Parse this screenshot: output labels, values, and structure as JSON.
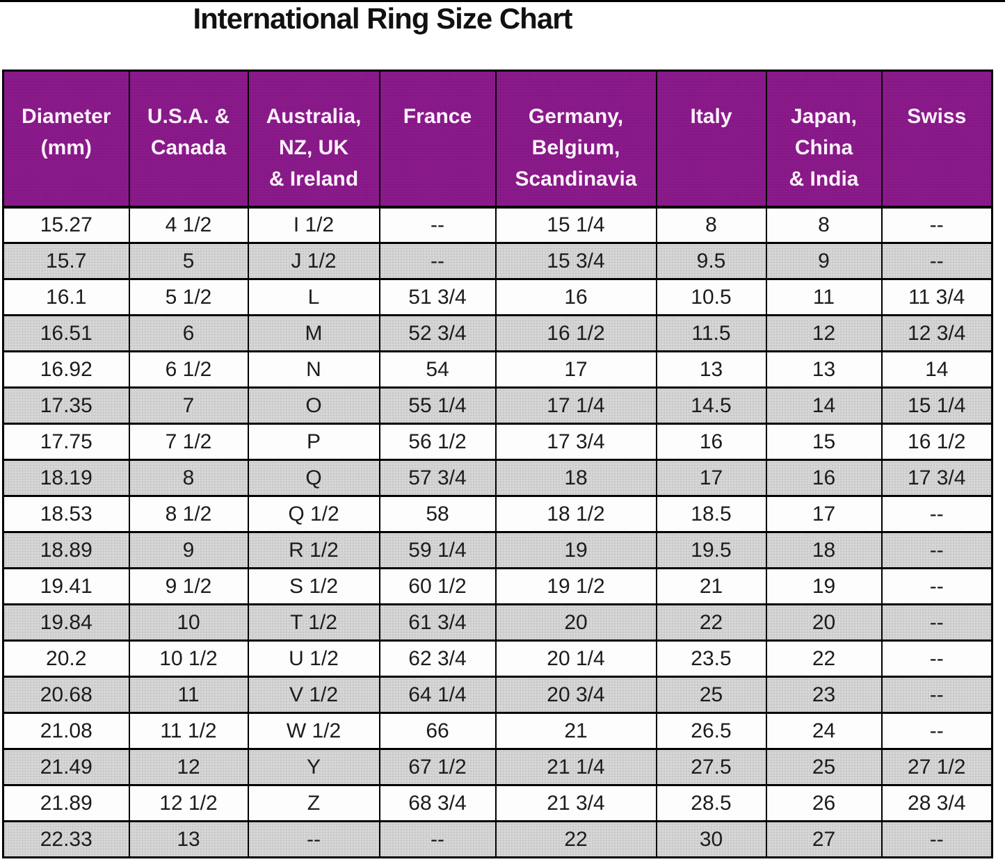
{
  "title": "International Ring Size Chart",
  "chart_data": {
    "type": "table",
    "title": "International Ring Size Chart",
    "columns": [
      {
        "id": "diameter-mm",
        "label": "Diameter\n(mm)"
      },
      {
        "id": "usa-canada",
        "label": "U.S.A. &\nCanada"
      },
      {
        "id": "australia-nz-uk-ireland",
        "label": "Australia,\nNZ, UK\n& Ireland"
      },
      {
        "id": "france",
        "label": "France"
      },
      {
        "id": "germany-belgium-scandinavia",
        "label": "Germany,\nBelgium,\nScandinavia"
      },
      {
        "id": "italy",
        "label": "Italy"
      },
      {
        "id": "japan-china-india",
        "label": "Japan,\nChina\n& India"
      },
      {
        "id": "swiss",
        "label": "Swiss"
      }
    ],
    "rows": [
      [
        "15.27",
        "4 1/2",
        "I 1/2",
        "--",
        "15 1/4",
        "8",
        "8",
        "--"
      ],
      [
        "15.7",
        "5",
        "J 1/2",
        "--",
        "15 3/4",
        "9.5",
        "9",
        "--"
      ],
      [
        "16.1",
        "5 1/2",
        "L",
        "51 3/4",
        "16",
        "10.5",
        "11",
        "11 3/4"
      ],
      [
        "16.51",
        "6",
        "M",
        "52 3/4",
        "16 1/2",
        "11.5",
        "12",
        "12 3/4"
      ],
      [
        "16.92",
        "6 1/2",
        "N",
        "54",
        "17",
        "13",
        "13",
        "14"
      ],
      [
        "17.35",
        "7",
        "O",
        "55 1/4",
        "17 1/4",
        "14.5",
        "14",
        "15 1/4"
      ],
      [
        "17.75",
        "7 1/2",
        "P",
        "56 1/2",
        "17 3/4",
        "16",
        "15",
        "16 1/2"
      ],
      [
        "18.19",
        "8",
        "Q",
        "57 3/4",
        "18",
        "17",
        "16",
        "17 3/4"
      ],
      [
        "18.53",
        "8 1/2",
        "Q 1/2",
        "58",
        "18 1/2",
        "18.5",
        "17",
        "--"
      ],
      [
        "18.89",
        "9",
        "R 1/2",
        "59 1/4",
        "19",
        "19.5",
        "18",
        "--"
      ],
      [
        "19.41",
        "9 1/2",
        "S 1/2",
        "60 1/2",
        "19 1/2",
        "21",
        "19",
        "--"
      ],
      [
        "19.84",
        "10",
        "T 1/2",
        "61 3/4",
        "20",
        "22",
        "20",
        "--"
      ],
      [
        "20.2",
        "10 1/2",
        "U 1/2",
        "62 3/4",
        "20 1/4",
        "23.5",
        "22",
        "--"
      ],
      [
        "20.68",
        "11",
        "V 1/2",
        "64 1/4",
        "20 3/4",
        "25",
        "23",
        "--"
      ],
      [
        "21.08",
        "11 1/2",
        "W 1/2",
        "66",
        "21",
        "26.5",
        "24",
        "--"
      ],
      [
        "21.49",
        "12",
        "Y",
        "67 1/2",
        "21 1/4",
        "27.5",
        "25",
        "27 1/2"
      ],
      [
        "21.89",
        "12 1/2",
        "Z",
        "68 3/4",
        "21 3/4",
        "28.5",
        "26",
        "28 3/4"
      ],
      [
        "22.33",
        "13",
        "--",
        "--",
        "22",
        "30",
        "27",
        "--"
      ]
    ]
  },
  "colors": {
    "header_bg": "#8B1A8B",
    "header_text": "#FDF2FC",
    "row_bg": "#FDFDFD",
    "row_alt_bg": "#D6D6D6",
    "row_alt_dot": "#BDBDBD",
    "cell_text": "#1C1C1C",
    "title_color": "#111111",
    "border": "#000000"
  }
}
